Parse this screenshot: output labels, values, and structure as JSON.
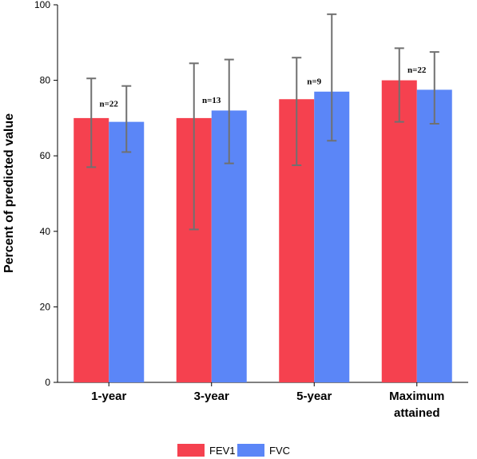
{
  "colors": {
    "FEV1": "#f5414f",
    "FVC": "#5b86f7",
    "error_bar": "#707070",
    "axis": "#000000"
  },
  "chart_data": {
    "type": "bar",
    "ylabel": "Percent of predicted value",
    "ylim": [
      0,
      100
    ],
    "yticks": [
      0,
      20,
      40,
      60,
      80,
      100
    ],
    "categories": [
      {
        "label": "1-year",
        "lines": [
          "1-year"
        ]
      },
      {
        "label": "3-year",
        "lines": [
          "3-year"
        ]
      },
      {
        "label": "5-year",
        "lines": [
          "5-year"
        ]
      },
      {
        "label": "Maximum attained",
        "lines": [
          "Maximum",
          "attained"
        ]
      }
    ],
    "series": [
      {
        "name": "FEV1",
        "values": [
          70,
          70,
          75,
          80
        ],
        "err_low": [
          57,
          40.5,
          57.5,
          69
        ],
        "err_high": [
          80.5,
          84.5,
          86,
          88.5
        ]
      },
      {
        "name": "FVC",
        "values": [
          69,
          72,
          77,
          77.5
        ],
        "err_low": [
          61,
          58,
          64,
          68.5
        ],
        "err_high": [
          78.5,
          85.5,
          97.5,
          87.5
        ]
      }
    ],
    "annotations": [
      "n=22",
      "n=13",
      "n=9",
      "n=22"
    ],
    "annotation_y": [
      73,
      74,
      79,
      82
    ],
    "legend": {
      "placement": "bottom-center",
      "entries": [
        "FEV1",
        "FVC"
      ]
    },
    "grid": false
  }
}
